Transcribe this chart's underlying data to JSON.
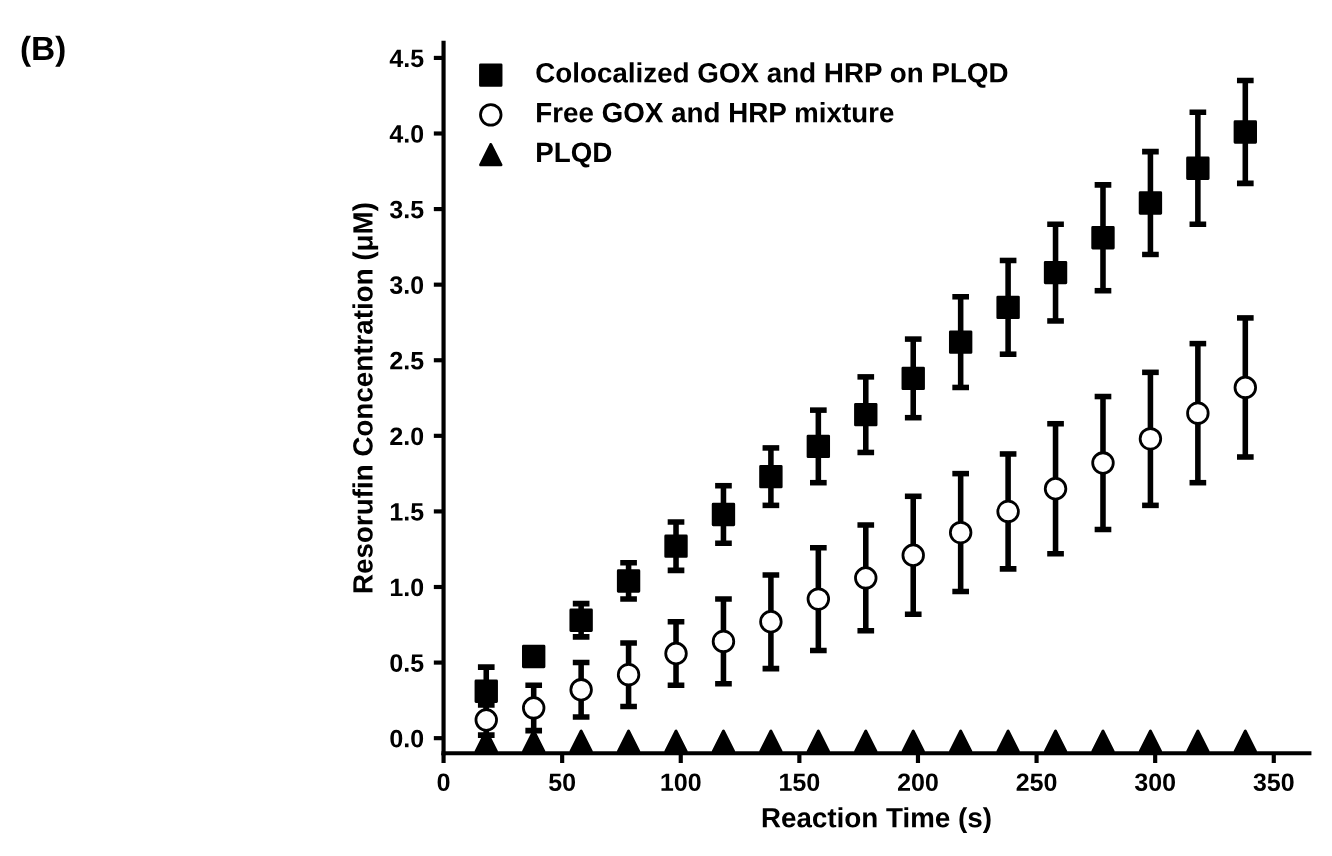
{
  "chart_data": {
    "type": "scatter",
    "title": "(B)",
    "xlabel": "Reaction Time (s)",
    "ylabel": "Resorufin Concentration (μM)",
    "x": [
      18,
      38,
      58,
      78,
      98,
      118,
      138,
      158,
      178,
      198,
      218,
      238,
      258,
      278,
      298,
      318,
      338
    ],
    "series": [
      {
        "name": "Colocalized GOX and HRP on PLQD",
        "color": "#000000",
        "marker": "square",
        "values": [
          0.31,
          0.54,
          0.78,
          1.04,
          1.27,
          1.48,
          1.73,
          1.93,
          2.14,
          2.38,
          2.62,
          2.85,
          3.08,
          3.31,
          3.54,
          3.77,
          4.01
        ],
        "errors": [
          0.16,
          0.04,
          0.11,
          0.12,
          0.16,
          0.19,
          0.19,
          0.24,
          0.25,
          0.26,
          0.3,
          0.31,
          0.32,
          0.35,
          0.34,
          0.37,
          0.34
        ]
      },
      {
        "name": "Free GOX and HRP mixture",
        "color": "#ffffff",
        "marker": "circle",
        "values": [
          0.12,
          0.2,
          0.32,
          0.42,
          0.56,
          0.64,
          0.77,
          0.92,
          1.06,
          1.21,
          1.36,
          1.5,
          1.65,
          1.82,
          1.98,
          2.15,
          2.32
        ],
        "errors": [
          0.1,
          0.15,
          0.18,
          0.21,
          0.21,
          0.28,
          0.31,
          0.34,
          0.35,
          0.39,
          0.39,
          0.38,
          0.43,
          0.44,
          0.44,
          0.46,
          0.46
        ]
      },
      {
        "name": "PLQD",
        "color": "#000000",
        "marker": "triangle",
        "values": [
          -0.02,
          -0.02,
          -0.02,
          -0.02,
          -0.02,
          -0.02,
          -0.02,
          -0.02,
          -0.02,
          -0.02,
          -0.02,
          -0.02,
          -0.02,
          -0.02,
          -0.02,
          -0.02,
          -0.02
        ]
      }
    ],
    "xlim": [
      0,
      365
    ],
    "xticks": [
      0,
      50,
      100,
      150,
      200,
      250,
      300,
      350
    ],
    "ylim": [
      -0.1,
      4.6
    ],
    "yticks": [
      {
        "value": 0,
        "label": "0.0"
      },
      0.5,
      {
        "value": 1,
        "label": "1.0"
      },
      1.5,
      {
        "value": 2,
        "label": "2.0"
      },
      2.5,
      {
        "value": 3,
        "label": "3.0"
      },
      3.5,
      {
        "value": 4,
        "label": "4.0"
      },
      4.5
    ],
    "grid": false,
    "legend": "top left"
  }
}
